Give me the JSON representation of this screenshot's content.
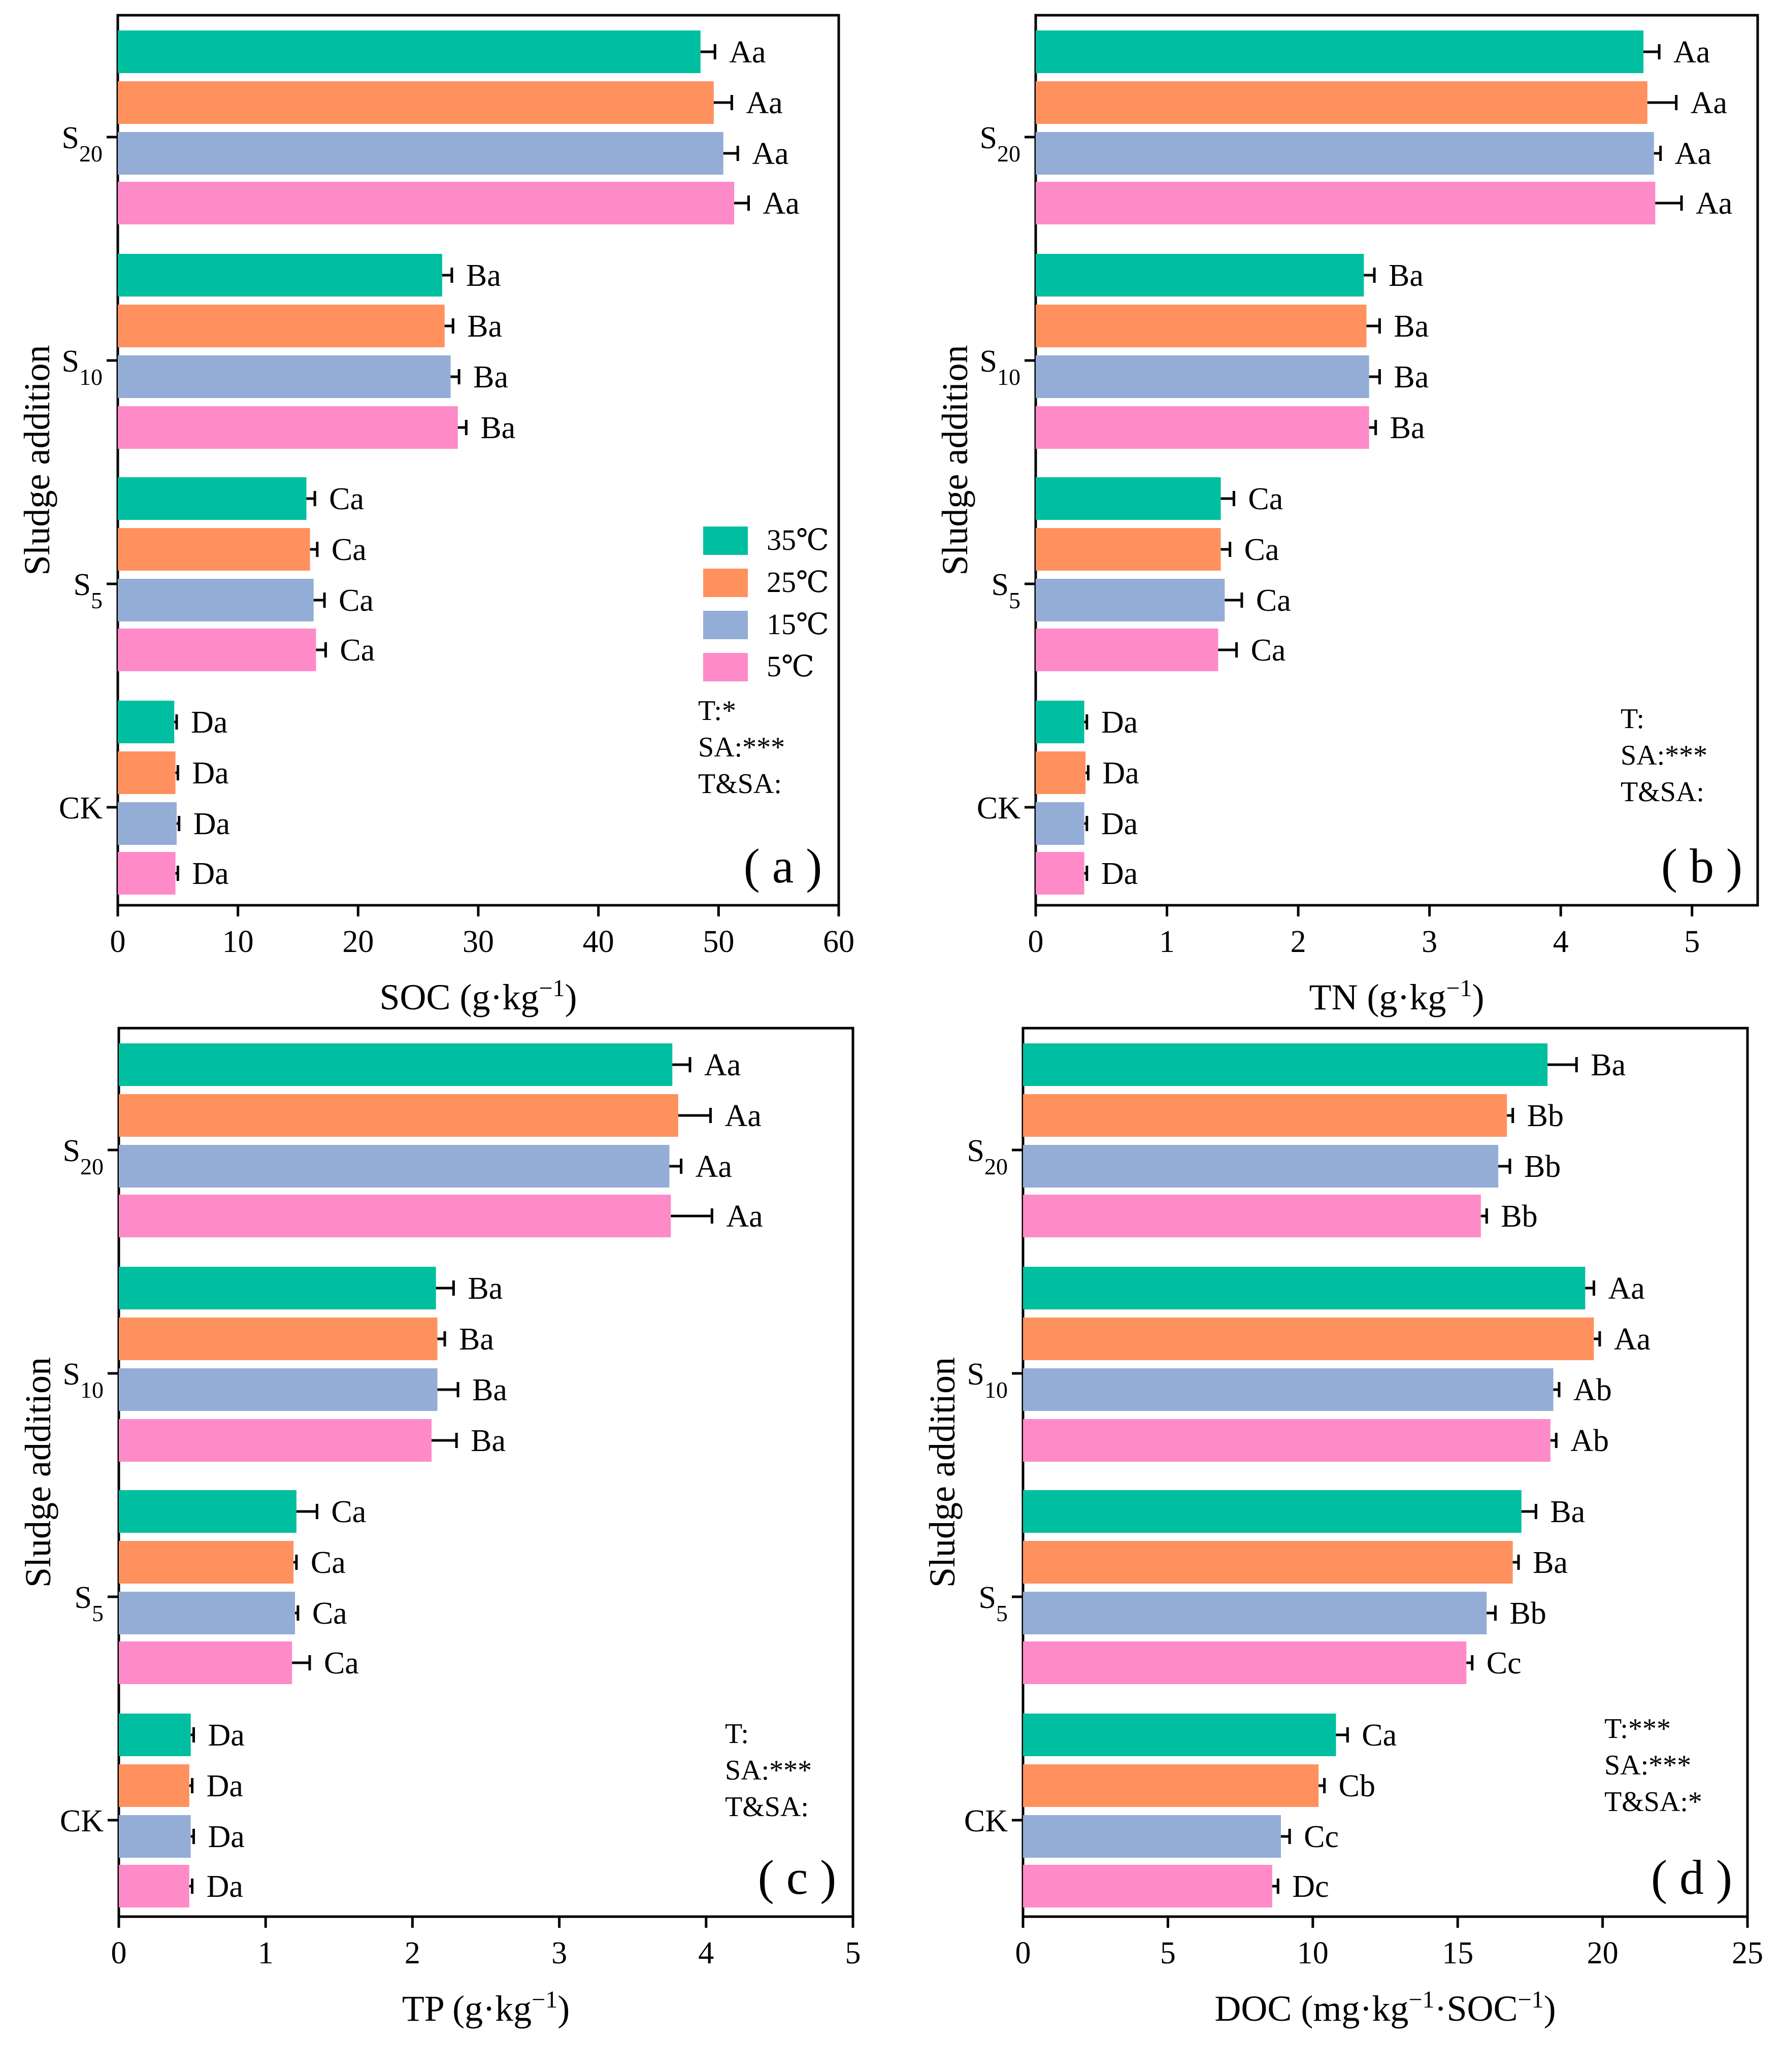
{
  "colors": {
    "35C": "#00BFA0",
    "25C": "#FF915F",
    "15C": "#93ADD6",
    "5C": "#FF8AC8",
    "axis": "#000000"
  },
  "legend": {
    "items": [
      "35℃",
      "25℃",
      "15℃",
      "5℃"
    ]
  },
  "chart_data": [
    {
      "type": "bar",
      "orientation": "horizontal",
      "panel_label": "( a )",
      "xlabel": {
        "main": "SOC (g·kg",
        "sup": "−1",
        "tail": ")"
      },
      "ylabel": "Sludge addition",
      "xlim": [
        0,
        60
      ],
      "xticks": [
        0,
        10,
        20,
        30,
        40,
        50,
        60
      ],
      "categories": [
        {
          "main": "S",
          "sub": "20"
        },
        {
          "main": "S",
          "sub": "10"
        },
        {
          "main": "S",
          "sub": "5"
        },
        {
          "main": "CK",
          "sub": ""
        }
      ],
      "series": [
        {
          "name": "35℃",
          "values": [
            48.5,
            27.0,
            15.7,
            4.7
          ],
          "errors": [
            1.2,
            0.8,
            0.7,
            0.2
          ],
          "letters": [
            "Aa",
            "Ba",
            "Ca",
            "Da"
          ]
        },
        {
          "name": "25℃",
          "values": [
            49.6,
            27.2,
            16.0,
            4.8
          ],
          "errors": [
            1.5,
            0.7,
            0.6,
            0.2
          ],
          "letters": [
            "Aa",
            "Ba",
            "Ca",
            "Da"
          ]
        },
        {
          "name": "15℃",
          "values": [
            50.4,
            27.7,
            16.3,
            4.9
          ],
          "errors": [
            1.2,
            0.7,
            0.9,
            0.2
          ],
          "letters": [
            "Aa",
            "Ba",
            "Ca",
            "Da"
          ]
        },
        {
          "name": "5℃",
          "values": [
            51.3,
            28.3,
            16.5,
            4.8
          ],
          "errors": [
            1.2,
            0.7,
            0.8,
            0.2
          ],
          "letters": [
            "Aa",
            "Ba",
            "Ca",
            "Da"
          ]
        }
      ],
      "stats": [
        "T:*",
        "SA:***",
        "T&SA:"
      ],
      "show_legend": true
    },
    {
      "type": "bar",
      "orientation": "horizontal",
      "panel_label": "( b )",
      "xlabel": {
        "main": "TN (g·kg",
        "sup": "−1",
        "tail": ")"
      },
      "ylabel": "Sludge addition",
      "xlim": [
        0,
        5.5
      ],
      "xticks": [
        0,
        1,
        2,
        3,
        4,
        5
      ],
      "categories": [
        {
          "main": "S",
          "sub": "20"
        },
        {
          "main": "S",
          "sub": "10"
        },
        {
          "main": "S",
          "sub": "5"
        },
        {
          "main": "CK",
          "sub": ""
        }
      ],
      "series": [
        {
          "name": "35℃",
          "values": [
            4.63,
            2.5,
            1.41,
            0.37
          ],
          "errors": [
            0.12,
            0.08,
            0.1,
            0.02
          ],
          "letters": [
            "Aa",
            "Ba",
            "Ca",
            "Da"
          ]
        },
        {
          "name": "25℃",
          "values": [
            4.66,
            2.52,
            1.41,
            0.38
          ],
          "errors": [
            0.22,
            0.1,
            0.07,
            0.02
          ],
          "letters": [
            "Aa",
            "Ba",
            "Ca",
            "Da"
          ]
        },
        {
          "name": "15℃",
          "values": [
            4.71,
            2.54,
            1.44,
            0.37
          ],
          "errors": [
            0.05,
            0.08,
            0.13,
            0.02
          ],
          "letters": [
            "Aa",
            "Ba",
            "Ca",
            "Da"
          ]
        },
        {
          "name": "5℃",
          "values": [
            4.72,
            2.54,
            1.39,
            0.37
          ],
          "errors": [
            0.2,
            0.05,
            0.14,
            0.02
          ],
          "letters": [
            "Aa",
            "Ba",
            "Ca",
            "Da"
          ]
        }
      ],
      "stats": [
        "T:",
        "SA:***",
        "T&SA:"
      ],
      "show_legend": false
    },
    {
      "type": "bar",
      "orientation": "horizontal",
      "panel_label": "( c )",
      "xlabel": {
        "main": "TP (g·kg",
        "sup": "−1",
        "tail": ")"
      },
      "ylabel": "Sludge addition",
      "xlim": [
        0,
        5
      ],
      "xticks": [
        0,
        1,
        2,
        3,
        4,
        5
      ],
      "categories": [
        {
          "main": "S",
          "sub": "20"
        },
        {
          "main": "S",
          "sub": "10"
        },
        {
          "main": "S",
          "sub": "5"
        },
        {
          "main": "CK",
          "sub": ""
        }
      ],
      "series": [
        {
          "name": "35℃",
          "values": [
            3.77,
            2.16,
            1.21,
            0.49
          ],
          "errors": [
            0.12,
            0.12,
            0.14,
            0.02
          ],
          "letters": [
            "Aa",
            "Ba",
            "Ca",
            "Da"
          ]
        },
        {
          "name": "25℃",
          "values": [
            3.81,
            2.17,
            1.19,
            0.48
          ],
          "errors": [
            0.22,
            0.05,
            0.02,
            0.02
          ],
          "letters": [
            "Aa",
            "Ba",
            "Ca",
            "Da"
          ]
        },
        {
          "name": "15℃",
          "values": [
            3.75,
            2.17,
            1.2,
            0.49
          ],
          "errors": [
            0.08,
            0.14,
            0.02,
            0.02
          ],
          "letters": [
            "Aa",
            "Ba",
            "Ca",
            "Da"
          ]
        },
        {
          "name": "5℃",
          "values": [
            3.76,
            2.13,
            1.18,
            0.48
          ],
          "errors": [
            0.28,
            0.17,
            0.12,
            0.02
          ],
          "letters": [
            "Aa",
            "Ba",
            "Ca",
            "Da"
          ]
        }
      ],
      "stats": [
        "T:",
        "SA:***",
        "T&SA:"
      ],
      "show_legend": false
    },
    {
      "type": "bar",
      "orientation": "horizontal",
      "panel_label": "( d )",
      "xlabel": {
        "main": "DOC (mg·kg",
        "sup": "−1",
        "mid": "·SOC",
        "sup2": "−1",
        "tail": ")"
      },
      "ylabel": "Sludge addition",
      "xlim": [
        0,
        25
      ],
      "xticks": [
        0,
        5,
        10,
        15,
        20,
        25
      ],
      "categories": [
        {
          "main": "S",
          "sub": "20"
        },
        {
          "main": "S",
          "sub": "10"
        },
        {
          "main": "S",
          "sub": "5"
        },
        {
          "main": "CK",
          "sub": ""
        }
      ],
      "series": [
        {
          "name": "35℃",
          "values": [
            18.1,
            19.4,
            17.2,
            10.8
          ],
          "errors": [
            1.0,
            0.3,
            0.5,
            0.4
          ],
          "letters": [
            "Ba",
            "Aa",
            "Ba",
            "Ca"
          ]
        },
        {
          "name": "25℃",
          "values": [
            16.7,
            19.7,
            16.9,
            10.2
          ],
          "errors": [
            0.2,
            0.2,
            0.2,
            0.2
          ],
          "letters": [
            "Bb",
            "Aa",
            "Ba",
            "Cb"
          ]
        },
        {
          "name": "15℃",
          "values": [
            16.4,
            18.3,
            16.0,
            8.9
          ],
          "errors": [
            0.4,
            0.2,
            0.3,
            0.3
          ],
          "letters": [
            "Bb",
            "Ab",
            "Bb",
            "Cc"
          ]
        },
        {
          "name": "5℃",
          "values": [
            15.8,
            18.2,
            15.3,
            8.6
          ],
          "errors": [
            0.2,
            0.2,
            0.2,
            0.2
          ],
          "letters": [
            "Bb",
            "Ab",
            "Cc",
            "Dc"
          ]
        }
      ],
      "stats": [
        "T:***",
        "SA:***",
        "T&SA:*"
      ],
      "show_legend": false
    }
  ]
}
